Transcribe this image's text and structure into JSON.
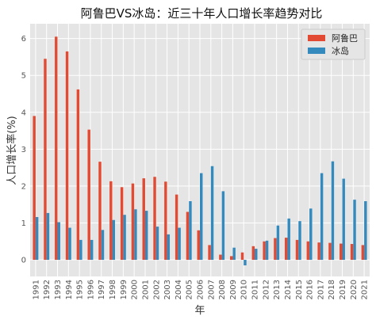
{
  "chart_data": {
    "type": "bar",
    "title": "阿鲁巴VS冰岛：近三十年人口增长率趋势对比",
    "xlabel": "年",
    "ylabel": "人口增长率(%)",
    "ylim": [
      -0.45,
      6.4
    ],
    "yticks": [
      0,
      1,
      2,
      3,
      4,
      5,
      6
    ],
    "grid": true,
    "legend_position": "top-right",
    "categories": [
      "1991",
      "1992",
      "1993",
      "1994",
      "1995",
      "1996",
      "1997",
      "1998",
      "1999",
      "2000",
      "2001",
      "2002",
      "2003",
      "2004",
      "2005",
      "2006",
      "2007",
      "2008",
      "2009",
      "2010",
      "2011",
      "2012",
      "2013",
      "2014",
      "2015",
      "2016",
      "2017",
      "2018",
      "2019",
      "2020",
      "2021"
    ],
    "series": [
      {
        "name": "阿鲁巴",
        "color": "#e24a33",
        "values": [
          3.9,
          5.45,
          6.05,
          5.65,
          4.62,
          3.53,
          2.66,
          2.13,
          1.97,
          2.07,
          2.21,
          2.25,
          2.12,
          1.77,
          1.3,
          0.8,
          0.4,
          0.14,
          0.1,
          0.2,
          0.37,
          0.5,
          0.59,
          0.6,
          0.54,
          0.5,
          0.47,
          0.46,
          0.44,
          0.43,
          0.4
        ]
      },
      {
        "name": "冰岛",
        "color": "#348abd",
        "values": [
          1.16,
          1.27,
          1.02,
          0.87,
          0.54,
          0.54,
          0.81,
          1.08,
          1.22,
          1.37,
          1.33,
          0.9,
          0.69,
          0.87,
          1.59,
          2.35,
          2.54,
          1.86,
          0.33,
          -0.15,
          0.3,
          0.52,
          0.93,
          1.12,
          1.05,
          1.39,
          2.35,
          2.67,
          2.2,
          1.63,
          1.59
        ]
      }
    ]
  },
  "background": "#e5e5e5",
  "grid_color": "#ffffff"
}
